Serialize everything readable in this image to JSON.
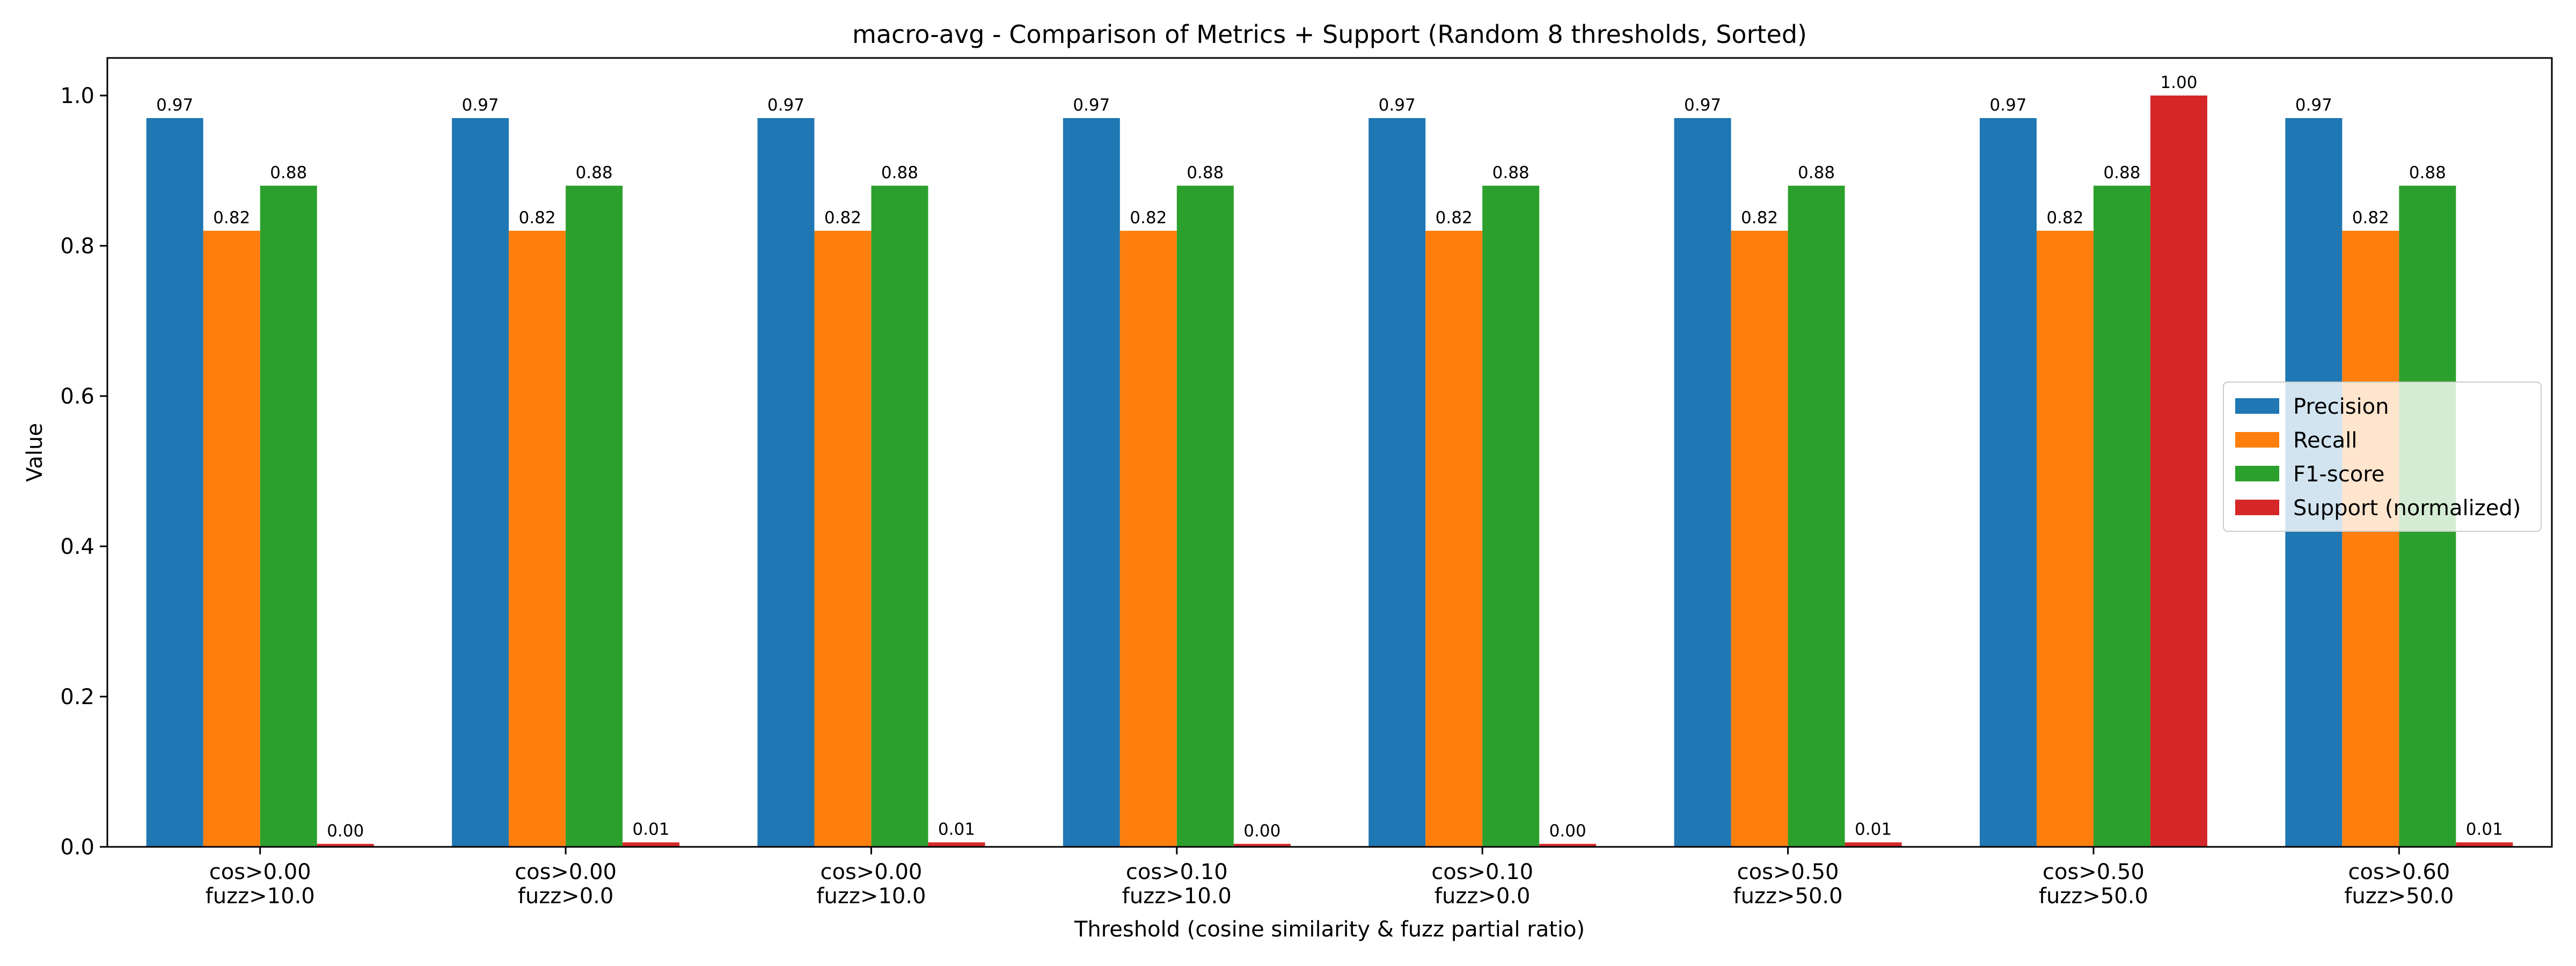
{
  "chart_data": {
    "type": "bar",
    "title": "macro-avg - Comparison of Metrics + Support (Random 8 thresholds, Sorted)",
    "xlabel": "Threshold (cosine similarity & fuzz partial ratio)",
    "ylabel": "Value",
    "ylim": [
      0,
      1.05
    ],
    "yticks": [
      0.0,
      0.2,
      0.4,
      0.6,
      0.8,
      1.0
    ],
    "ytick_labels": [
      "0.0",
      "0.2",
      "0.4",
      "0.6",
      "0.8",
      "1.0"
    ],
    "grid": false,
    "legend_position": "center-right",
    "categories": [
      [
        "cos>0.00",
        "fuzz>10.0"
      ],
      [
        "cos>0.00",
        "fuzz>0.0"
      ],
      [
        "cos>0.00",
        "fuzz>10.0"
      ],
      [
        "cos>0.10",
        "fuzz>10.0"
      ],
      [
        "cos>0.10",
        "fuzz>0.0"
      ],
      [
        "cos>0.50",
        "fuzz>50.0"
      ],
      [
        "cos>0.50",
        "fuzz>50.0"
      ],
      [
        "cos>0.60",
        "fuzz>50.0"
      ]
    ],
    "series": [
      {
        "name": "Precision",
        "color": "#1f77b4",
        "values": [
          0.97,
          0.97,
          0.97,
          0.97,
          0.97,
          0.97,
          0.97,
          0.97
        ],
        "labels": [
          "0.97",
          "0.97",
          "0.97",
          "0.97",
          "0.97",
          "0.97",
          "0.97",
          "0.97"
        ]
      },
      {
        "name": "Recall",
        "color": "#ff7f0e",
        "values": [
          0.82,
          0.82,
          0.82,
          0.82,
          0.82,
          0.82,
          0.82,
          0.82
        ],
        "labels": [
          "0.82",
          "0.82",
          "0.82",
          "0.82",
          "0.82",
          "0.82",
          "0.82",
          "0.82"
        ]
      },
      {
        "name": "F1-score",
        "color": "#2ca02c",
        "values": [
          0.88,
          0.88,
          0.88,
          0.88,
          0.88,
          0.88,
          0.88,
          0.88
        ],
        "labels": [
          "0.88",
          "0.88",
          "0.88",
          "0.88",
          "0.88",
          "0.88",
          "0.88",
          "0.88"
        ]
      },
      {
        "name": "Support (normalized)",
        "color": "#d62728",
        "values": [
          0.004,
          0.006,
          0.006,
          0.004,
          0.004,
          0.006,
          1.0,
          0.006
        ],
        "labels": [
          "0.00",
          "0.01",
          "0.01",
          "0.00",
          "0.00",
          "0.01",
          "1.00",
          "0.01"
        ]
      }
    ]
  }
}
